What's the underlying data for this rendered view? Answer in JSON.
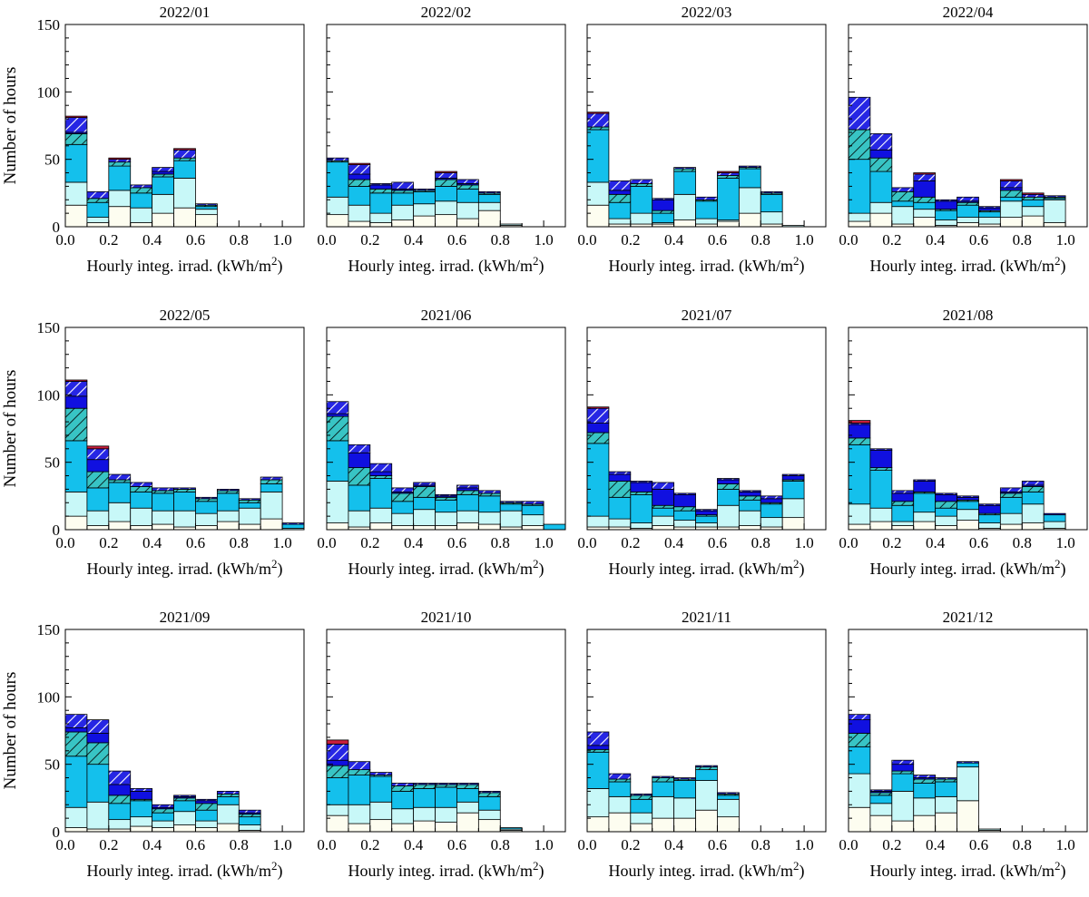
{
  "figure": {
    "ylabel": "Number of hours",
    "xlabel_main": "Hourly integ. irrad. (kWh/m",
    "xlabel_sup": "2",
    "xlabel_close": ")"
  },
  "chart_data": {
    "type": "bar",
    "stacked": true,
    "bin_width": 0.1,
    "xlim": [
      0.0,
      1.1
    ],
    "ylim": [
      0,
      150
    ],
    "xticks": [
      0.0,
      0.2,
      0.4,
      0.6,
      0.8,
      1.0
    ],
    "xtick_labels": [
      "0.0",
      "0.2",
      "0.4",
      "0.6",
      "0.8",
      "1.0"
    ],
    "yticks": [
      0,
      50,
      100,
      150
    ],
    "ytick_labels": [
      "0",
      "50",
      "100",
      "150"
    ],
    "layers": [
      {
        "name": "layer-1",
        "color": "#fdfdf0",
        "hatch": false
      },
      {
        "name": "layer-2",
        "color": "#c8f8f8",
        "hatch": false
      },
      {
        "name": "layer-3",
        "color": "#14c0ec",
        "hatch": false
      },
      {
        "name": "layer-4",
        "color": "#38c4c4",
        "hatch": true
      },
      {
        "name": "layer-5",
        "color": "#1010e0",
        "hatch": false
      },
      {
        "name": "layer-6",
        "color": "#2626e4",
        "hatch": true
      },
      {
        "name": "layer-7",
        "color": "#c81e3c",
        "hatch": false
      }
    ],
    "panels": [
      {
        "title": "2022/01",
        "bins": [
          [
            16,
            17,
            28,
            8,
            1,
            11,
            1
          ],
          [
            3,
            4,
            11,
            3,
            0,
            5,
            0
          ],
          [
            15,
            12,
            18,
            3,
            0,
            2,
            1
          ],
          [
            3,
            11,
            11,
            4,
            0,
            2,
            0
          ],
          [
            10,
            14,
            13,
            2,
            2,
            3,
            0
          ],
          [
            14,
            22,
            13,
            2,
            0,
            6,
            1
          ],
          [
            9,
            4,
            2,
            1,
            0,
            1,
            0
          ]
        ]
      },
      {
        "title": "2022/02",
        "bins": [
          [
            9,
            13,
            26,
            1,
            0,
            2,
            0
          ],
          [
            4,
            12,
            14,
            5,
            4,
            7,
            1
          ],
          [
            3,
            7,
            15,
            3,
            3,
            1,
            0
          ],
          [
            5,
            11,
            9,
            2,
            1,
            5,
            0
          ],
          [
            8,
            9,
            9,
            1,
            0,
            1,
            0
          ],
          [
            9,
            10,
            11,
            5,
            1,
            4,
            1
          ],
          [
            6,
            12,
            10,
            3,
            1,
            3,
            0
          ],
          [
            12,
            6,
            6,
            1,
            0,
            1,
            0
          ],
          [
            1,
            1,
            0,
            0,
            0,
            0,
            0
          ]
        ]
      },
      {
        "title": "2022/03",
        "bins": [
          [
            16,
            17,
            39,
            2,
            0,
            10,
            1
          ],
          [
            2,
            4,
            12,
            6,
            3,
            7,
            0
          ],
          [
            2,
            8,
            20,
            2,
            0,
            3,
            0
          ],
          [
            2,
            1,
            7,
            2,
            8,
            1,
            0
          ],
          [
            5,
            19,
            17,
            2,
            0,
            1,
            0
          ],
          [
            2,
            4,
            13,
            1,
            0,
            2,
            0
          ],
          [
            4,
            1,
            31,
            2,
            0,
            2,
            1
          ],
          [
            10,
            19,
            14,
            1,
            0,
            1,
            0
          ],
          [
            2,
            9,
            13,
            1,
            0,
            1,
            0
          ],
          [
            0,
            1,
            0,
            0,
            0,
            0,
            0
          ]
        ]
      },
      {
        "title": "2022/04",
        "bins": [
          [
            4,
            6,
            40,
            22,
            0,
            24,
            0
          ],
          [
            10,
            8,
            23,
            10,
            6,
            12,
            0
          ],
          [
            2,
            13,
            4,
            7,
            0,
            3,
            0
          ],
          [
            7,
            6,
            5,
            4,
            12,
            5,
            1
          ],
          [
            1,
            4,
            7,
            1,
            6,
            1,
            0
          ],
          [
            3,
            4,
            9,
            2,
            1,
            3,
            0
          ],
          [
            2,
            5,
            4,
            1,
            2,
            1,
            0
          ],
          [
            7,
            12,
            3,
            5,
            2,
            5,
            1
          ],
          [
            8,
            7,
            5,
            2,
            0,
            2,
            1
          ],
          [
            3,
            17,
            1,
            1,
            0,
            1,
            0
          ]
        ]
      },
      {
        "title": "2022/05",
        "bins": [
          [
            10,
            18,
            38,
            24,
            9,
            11,
            1
          ],
          [
            3,
            11,
            17,
            12,
            9,
            8,
            2
          ],
          [
            6,
            14,
            15,
            2,
            0,
            4,
            0
          ],
          [
            3,
            13,
            12,
            4,
            0,
            3,
            0
          ],
          [
            4,
            10,
            13,
            2,
            0,
            2,
            0
          ],
          [
            2,
            12,
            14,
            2,
            0,
            1,
            0
          ],
          [
            3,
            9,
            9,
            2,
            0,
            1,
            0
          ],
          [
            6,
            8,
            13,
            2,
            0,
            1,
            0
          ],
          [
            4,
            12,
            4,
            2,
            0,
            1,
            0
          ],
          [
            8,
            20,
            6,
            3,
            0,
            2,
            0
          ],
          [
            0,
            1,
            3,
            0,
            0,
            1,
            0
          ]
        ]
      },
      {
        "title": "2021/06",
        "bins": [
          [
            5,
            31,
            30,
            18,
            2,
            9,
            0
          ],
          [
            2,
            12,
            19,
            13,
            11,
            6,
            0
          ],
          [
            5,
            11,
            22,
            2,
            3,
            6,
            0
          ],
          [
            3,
            9,
            9,
            6,
            1,
            3,
            0
          ],
          [
            3,
            12,
            9,
            8,
            1,
            2,
            0
          ],
          [
            3,
            10,
            9,
            2,
            1,
            1,
            0
          ],
          [
            5,
            9,
            12,
            3,
            2,
            2,
            0
          ],
          [
            4,
            9,
            12,
            2,
            0,
            2,
            0
          ],
          [
            2,
            12,
            5,
            1,
            0,
            1,
            0
          ],
          [
            3,
            8,
            7,
            1,
            0,
            2,
            0
          ],
          [
            0,
            0,
            4,
            0,
            0,
            0,
            0
          ]
        ]
      },
      {
        "title": "2021/07",
        "bins": [
          [
            2,
            8,
            54,
            8,
            7,
            11,
            1
          ],
          [
            2,
            6,
            16,
            12,
            5,
            2,
            0
          ],
          [
            1,
            4,
            21,
            2,
            7,
            1,
            0
          ],
          [
            3,
            7,
            6,
            2,
            12,
            5,
            0
          ],
          [
            2,
            5,
            7,
            3,
            9,
            1,
            0
          ],
          [
            2,
            3,
            5,
            1,
            3,
            1,
            0
          ],
          [
            2,
            16,
            12,
            4,
            3,
            1,
            0
          ],
          [
            3,
            11,
            8,
            3,
            3,
            1,
            0
          ],
          [
            2,
            7,
            10,
            1,
            3,
            2,
            0
          ],
          [
            9,
            14,
            13,
            1,
            3,
            1,
            0
          ]
        ]
      },
      {
        "title": "2021/08",
        "bins": [
          [
            4,
            15,
            44,
            5,
            10,
            1,
            2
          ],
          [
            6,
            10,
            28,
            2,
            13,
            1,
            0
          ],
          [
            3,
            3,
            12,
            3,
            6,
            2,
            0
          ],
          [
            6,
            7,
            14,
            1,
            8,
            1,
            0
          ],
          [
            3,
            7,
            6,
            5,
            5,
            1,
            0
          ],
          [
            7,
            8,
            6,
            1,
            2,
            1,
            0
          ],
          [
            1,
            4,
            6,
            1,
            6,
            1,
            0
          ],
          [
            4,
            8,
            12,
            3,
            1,
            3,
            0
          ],
          [
            5,
            14,
            9,
            4,
            1,
            3,
            0
          ],
          [
            1,
            5,
            5,
            0,
            1,
            0,
            0
          ]
        ]
      },
      {
        "title": "2021/09",
        "bins": [
          [
            3,
            15,
            38,
            18,
            3,
            10,
            0
          ],
          [
            2,
            20,
            28,
            16,
            7,
            10,
            0
          ],
          [
            2,
            7,
            12,
            6,
            8,
            10,
            0
          ],
          [
            4,
            7,
            12,
            1,
            6,
            2,
            0
          ],
          [
            3,
            5,
            6,
            3,
            1,
            2,
            0
          ],
          [
            5,
            10,
            8,
            2,
            1,
            1,
            0
          ],
          [
            3,
            5,
            8,
            5,
            2,
            1,
            0
          ],
          [
            6,
            14,
            6,
            2,
            0,
            2,
            0
          ],
          [
            1,
            4,
            6,
            2,
            1,
            2,
            0
          ]
        ]
      },
      {
        "title": "2021/10",
        "bins": [
          [
            12,
            8,
            20,
            9,
            4,
            12,
            3
          ],
          [
            6,
            14,
            22,
            4,
            0,
            6,
            0
          ],
          [
            9,
            13,
            19,
            1,
            0,
            2,
            0
          ],
          [
            6,
            11,
            13,
            4,
            0,
            2,
            0
          ],
          [
            8,
            10,
            14,
            3,
            0,
            1,
            0
          ],
          [
            7,
            11,
            15,
            2,
            0,
            1,
            0
          ],
          [
            14,
            8,
            10,
            3,
            0,
            1,
            0
          ],
          [
            9,
            7,
            10,
            3,
            0,
            1,
            0
          ],
          [
            1,
            1,
            1,
            0,
            0,
            0,
            0
          ]
        ]
      },
      {
        "title": "2021/11",
        "bins": [
          [
            11,
            21,
            27,
            2,
            3,
            10,
            0
          ],
          [
            14,
            12,
            11,
            2,
            0,
            4,
            0
          ],
          [
            6,
            8,
            10,
            3,
            0,
            1,
            0
          ],
          [
            10,
            16,
            11,
            3,
            0,
            1,
            0
          ],
          [
            10,
            15,
            13,
            1,
            0,
            1,
            0
          ],
          [
            16,
            22,
            8,
            2,
            0,
            1,
            0
          ],
          [
            11,
            13,
            3,
            1,
            0,
            1,
            0
          ]
        ]
      },
      {
        "title": "2021/12",
        "bins": [
          [
            18,
            25,
            20,
            10,
            10,
            4,
            0
          ],
          [
            12,
            9,
            6,
            2,
            1,
            1,
            0
          ],
          [
            8,
            22,
            13,
            2,
            5,
            3,
            0
          ],
          [
            12,
            13,
            11,
            3,
            1,
            2,
            0
          ],
          [
            14,
            12,
            11,
            2,
            0,
            1,
            0
          ],
          [
            23,
            25,
            3,
            0,
            0,
            1,
            0
          ],
          [
            1,
            1,
            0,
            0,
            0,
            0,
            0
          ]
        ]
      }
    ]
  }
}
